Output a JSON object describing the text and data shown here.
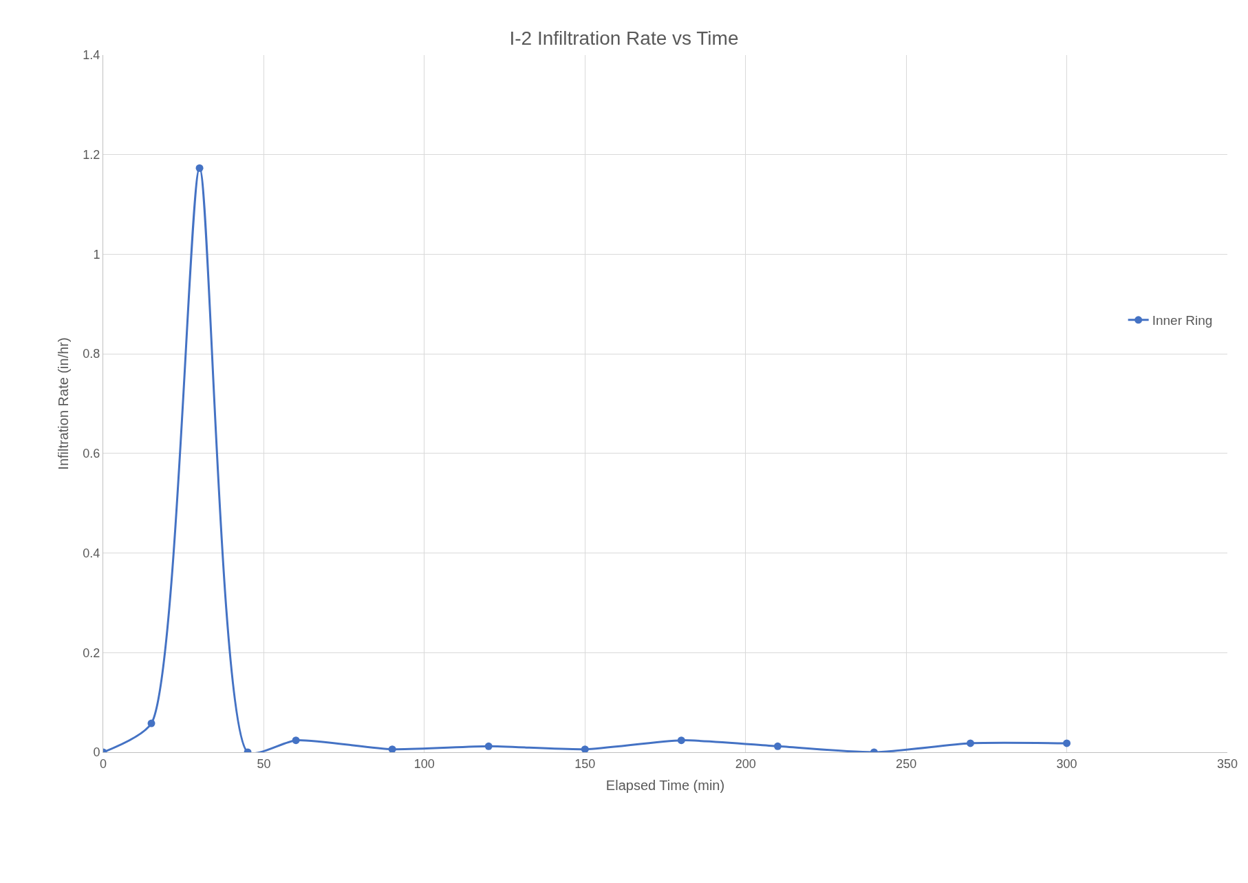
{
  "chart_data": {
    "type": "line",
    "title": "I-2 Infiltration Rate vs Time",
    "xlabel": "Elapsed Time (min)",
    "ylabel": "Infiltration Rate (in/hr)",
    "x": [
      0,
      15,
      30,
      45,
      60,
      90,
      120,
      150,
      180,
      210,
      240,
      270,
      300
    ],
    "series": [
      {
        "name": "Inner Ring",
        "color": "#4472c4",
        "values": [
          0,
          0.058,
          1.173,
          0,
          0.024,
          0.006,
          0.012,
          0.006,
          0.024,
          0.012,
          0,
          0.018,
          0.018
        ]
      }
    ],
    "xlim": [
      0,
      350
    ],
    "xticks": [
      0,
      50,
      100,
      150,
      200,
      250,
      300,
      350
    ],
    "ylim": [
      0,
      1.4
    ],
    "yticks": [
      0,
      0.2,
      0.4,
      0.6,
      0.8,
      1,
      1.2,
      1.4
    ],
    "grid": true,
    "legend": "right",
    "marker": "circle",
    "line_style": "solid"
  }
}
